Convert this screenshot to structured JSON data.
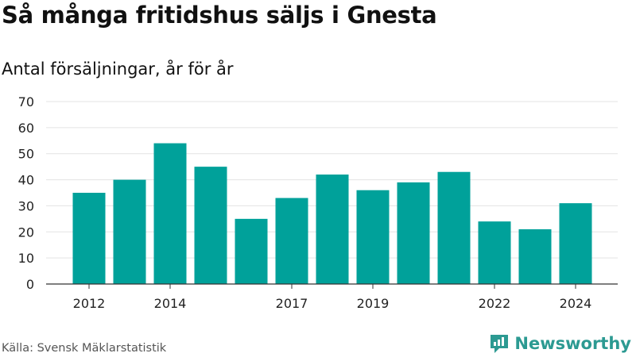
{
  "header": {
    "title": "Så många fritidshus säljs i Gnesta",
    "subtitle": "Antal försäljningar, år för år"
  },
  "footer": {
    "source": "Källa: Svensk Mäklarstatistik",
    "logo_text": "Newsworthy",
    "logo_icon": "newsworthy-logo-icon",
    "logo_color": "#2c9a92"
  },
  "chart_data": {
    "type": "bar",
    "categories": [
      "2012",
      "2013",
      "2014",
      "2015",
      "2016",
      "2017",
      "2018",
      "2019",
      "2020",
      "2021",
      "2022",
      "2023",
      "2024"
    ],
    "values": [
      35,
      40,
      54,
      45,
      25,
      33,
      42,
      36,
      39,
      43,
      24,
      21,
      31
    ],
    "x_tick_labels": [
      "2012",
      "2014",
      "2017",
      "2019",
      "2022",
      "2024"
    ],
    "y_ticks": [
      0,
      10,
      20,
      30,
      40,
      50,
      60,
      70
    ],
    "ylim": [
      0,
      70
    ],
    "bar_color": "#00a19a",
    "grid": true,
    "xlabel": "",
    "ylabel": ""
  }
}
